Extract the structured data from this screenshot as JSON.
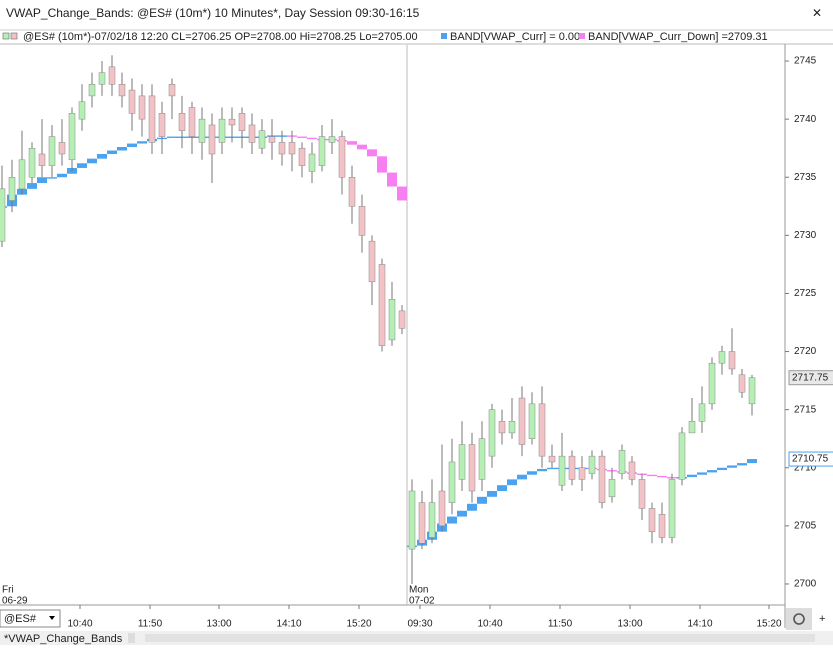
{
  "window": {
    "title": "VWAP_Change_Bands: @ES# (10m*) 10 Minutes*, Day Session 09:30-16:15",
    "close": "✕"
  },
  "header": {
    "symbol_info": "@ES# (10m*)-07/02/18 12:20 CL=2706.25 OP=2708.00 Hi=2708.25 Lo=2705.00",
    "band_up": "BAND[VWAP_Curr] = 0.00",
    "band_down": "BAND[VWAP_Curr_Down] =2709.31"
  },
  "chart_data": {
    "type": "candlestick",
    "up_color": "#b6efb6",
    "down_color": "#f3c2c6",
    "vwap_up_color": "#4ba3f0",
    "vwap_down_color": "#f77ff2",
    "sessions": [
      {
        "day": "Fri",
        "date": "06-29",
        "start": 0
      },
      {
        "day": "Mon",
        "date": "07-02",
        "start": 41
      }
    ],
    "open": [
      2729.5,
      2733,
      2734,
      2735,
      2737,
      2736,
      2738,
      2736.5,
      2740,
      2742,
      2743,
      2744.5,
      2743,
      2742.5,
      2742,
      2742,
      2740.5,
      2743,
      2740.5,
      2741,
      2738,
      2739.5,
      2738,
      2740,
      2740.5,
      2739.5,
      2737.5,
      2738.5,
      2738,
      2738,
      2737.5,
      2735.5,
      2736,
      2738,
      2738.5,
      2735,
      2732.5,
      2729.5,
      2727.5,
      2721,
      2723.5,
      2703,
      2707,
      2704,
      2708,
      2707,
      2709,
      2712,
      2709,
      2711,
      2714,
      2713,
      2716,
      2712.5,
      2715.5,
      2711,
      2708.5,
      2711,
      2710,
      2709.5,
      2711,
      2707.5,
      2709.5,
      2710.5,
      2709,
      2706.5,
      2706,
      2704,
      2709,
      2713,
      2714,
      2715.5,
      2719,
      2720,
      2718,
      2715.5
    ],
    "high": [
      2736,
      2736.5,
      2739,
      2738,
      2740,
      2739.5,
      2740,
      2741,
      2743,
      2744,
      2745,
      2745.5,
      2744,
      2743.5,
      2743,
      2743,
      2741.5,
      2743.5,
      2742,
      2741.5,
      2741,
      2740.5,
      2741,
      2741,
      2741,
      2740.5,
      2740,
      2740,
      2739,
      2739,
      2738,
      2738,
      2739.5,
      2740,
      2739,
      2736,
      2733.5,
      2730,
      2728,
      2726,
      2724,
      2709,
      2708,
      2709,
      2712,
      2712.5,
      2714,
      2713,
      2714,
      2715.5,
      2715,
      2716,
      2717,
      2716.5,
      2717,
      2712,
      2713,
      2711.5,
      2711,
      2711.5,
      2711.5,
      2710,
      2712,
      2711,
      2709.5,
      2707,
      2707,
      2709.5,
      2713.5,
      2716,
      2717,
      2719.5,
      2720.5,
      2722,
      2718.5,
      2718
    ],
    "low": [
      2729,
      2732,
      2733.5,
      2734.5,
      2735,
      2735,
      2736,
      2735.5,
      2739,
      2741,
      2742,
      2742,
      2741,
      2739,
      2738.5,
      2737,
      2737,
      2740,
      2737.5,
      2737,
      2736.5,
      2734.5,
      2737,
      2738,
      2737.5,
      2737,
      2737,
      2736.5,
      2736,
      2735.5,
      2735,
      2734.5,
      2735.5,
      2737,
      2733.5,
      2731,
      2728.5,
      2724,
      2720,
      2720.5,
      2721.5,
      2700,
      2703,
      2703.5,
      2704.5,
      2706,
      2708,
      2707,
      2708,
      2710,
      2712,
      2712.5,
      2711,
      2712,
      2710,
      2710,
      2708,
      2708.5,
      2708,
      2709,
      2706.5,
      2707,
      2709,
      2708.5,
      2705.5,
      2703.5,
      2703.5,
      2703.5,
      2708.5,
      2713,
      2713,
      2715,
      2718,
      2718,
      2716,
      2714.5
    ],
    "close": [
      2734,
      2735,
      2736.5,
      2737.5,
      2736,
      2738.5,
      2737,
      2740.5,
      2741.5,
      2743,
      2744,
      2743,
      2742,
      2740.5,
      2740,
      2738,
      2738.5,
      2742,
      2739,
      2738.5,
      2740,
      2737,
      2740,
      2739.5,
      2739,
      2738,
      2739,
      2738,
      2737,
      2737,
      2736,
      2737,
      2738.5,
      2738.5,
      2735,
      2732.5,
      2730,
      2726,
      2720.5,
      2724.5,
      2722,
      2708,
      2703.5,
      2707,
      2705,
      2710.5,
      2712,
      2708,
      2712.5,
      2715,
      2713,
      2714,
      2712,
      2715.5,
      2711,
      2710.5,
      2711,
      2709,
      2709,
      2711,
      2707,
      2709,
      2711.5,
      2709,
      2706.5,
      2704.5,
      2704,
      2709,
      2713,
      2714,
      2715.5,
      2719,
      2720,
      2718.5,
      2716.5,
      2717.75
    ],
    "vwap": [
      2732.5,
      2733.5,
      2734,
      2734.5,
      2735,
      2735,
      2735.3,
      2735.8,
      2736.2,
      2736.6,
      2737,
      2737.3,
      2737.6,
      2737.9,
      2738.1,
      2738.3,
      2738.4,
      2738.5,
      2738.5,
      2738.5,
      2738.5,
      2738.5,
      2738.5,
      2738.5,
      2738.5,
      2738.5,
      2738.5,
      2738.6,
      2738.6,
      2738.5,
      2738.4,
      2738.3,
      2738.3,
      2738.2,
      2738.1,
      2737.8,
      2737.4,
      2736.8,
      2735.4,
      2734.2,
      2733,
      2703.3,
      2703.8,
      2704.5,
      2705.2,
      2705.8,
      2706.3,
      2706.9,
      2707.5,
      2708,
      2708.5,
      2709,
      2709.4,
      2709.7,
      2709.9,
      2710,
      2710,
      2710,
      2710,
      2709.9,
      2709.8,
      2709.7,
      2709.6,
      2709.5,
      2709.4,
      2709.3,
      2709.2,
      2709.1,
      2709.2,
      2709.4,
      2709.6,
      2709.8,
      2710,
      2710.2,
      2710.4,
      2710.75
    ],
    "ylim": [
      2698.19,
      2746.38
    ],
    "yticks": [
      2700,
      2705,
      2710,
      2715,
      2720,
      2725,
      2730,
      2735,
      2740,
      2745
    ],
    "xlim": [
      -0.2,
      78.3
    ],
    "xticks": [
      {
        "value": 7.8,
        "label": "10:40"
      },
      {
        "value": 14.8,
        "label": "11:50"
      },
      {
        "value": 21.7,
        "label": "13:00"
      },
      {
        "value": 28.7,
        "label": "14:10"
      },
      {
        "value": 35.7,
        "label": "15:20"
      },
      {
        "value": 41.8,
        "label": "09:30"
      },
      {
        "value": 48.8,
        "label": "10:40"
      },
      {
        "value": 55.8,
        "label": "11:50"
      },
      {
        "value": 62.8,
        "label": "13:00"
      },
      {
        "value": 69.8,
        "label": "14:10"
      },
      {
        "value": 76.7,
        "label": "15:20"
      }
    ]
  },
  "footer": {
    "symbol": "@ES#",
    "tab": "*VWAP_Change_Bands",
    "add": "+"
  }
}
